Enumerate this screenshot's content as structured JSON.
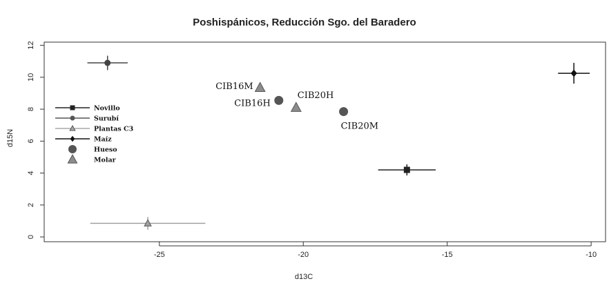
{
  "chart_data": {
    "type": "scatter",
    "title": "Poshispánicos, Reducción Sgo. del Baradero",
    "xlabel": "d13C",
    "ylabel": "d15N",
    "xlim": [
      -29,
      -9.5
    ],
    "ylim": [
      -0.3,
      12.2
    ],
    "xticks": [
      -25,
      -20,
      -15,
      -10
    ],
    "yticks": [
      0,
      2,
      4,
      6,
      8,
      10,
      12
    ],
    "colors": {
      "dark": "#222222",
      "mid": "#555555",
      "light": "#8c8c8c",
      "lighter": "#a8a8a8"
    },
    "legend": [
      {
        "name": "Novillo",
        "marker": "square",
        "color": "#222222",
        "line": true
      },
      {
        "name": "Surubí",
        "marker": "circle",
        "color": "#555555",
        "line": true
      },
      {
        "name": "Plantas C3",
        "marker": "triangle",
        "color": "#a8a8a8",
        "line": true
      },
      {
        "name": "Maíz",
        "marker": "diamond",
        "color": "#111111",
        "line": true
      },
      {
        "name": "Hueso",
        "marker": "circle",
        "color": "#555555",
        "line": false
      },
      {
        "name": "Molar",
        "marker": "triangle",
        "color": "#8c8c8c",
        "line": false
      }
    ],
    "reference_points": [
      {
        "series": "Surubí",
        "x": -26.8,
        "y": 10.9,
        "xerr": 0.7,
        "yerr": 0.45,
        "marker": "circle",
        "color": "#444444"
      },
      {
        "series": "Plantas C3",
        "x": -25.4,
        "y": 0.85,
        "xerr": 2.0,
        "yerr": 0.4,
        "marker": "triangle",
        "color": "#a0a0a0"
      },
      {
        "series": "Novillo",
        "x": -16.4,
        "y": 4.2,
        "xerr": 1.0,
        "yerr": 0.35,
        "marker": "square",
        "color": "#222222"
      },
      {
        "series": "Maíz",
        "x": -10.6,
        "y": 10.25,
        "xerr": 0.55,
        "yerr": 0.65,
        "marker": "diamond",
        "color": "#111111"
      }
    ],
    "samples": [
      {
        "label": "CIB16M",
        "x": -21.5,
        "y": 9.35,
        "marker": "triangle",
        "color": "#8c8c8c"
      },
      {
        "label": "CIB16H",
        "x": -20.85,
        "y": 8.55,
        "marker": "circle",
        "color": "#555555"
      },
      {
        "label": "CIB20H",
        "x": -20.25,
        "y": 8.1,
        "marker": "triangle",
        "color": "#8c8c8c"
      },
      {
        "label": "CIB20M",
        "x": -18.6,
        "y": 7.85,
        "marker": "circle",
        "color": "#555555"
      }
    ]
  }
}
